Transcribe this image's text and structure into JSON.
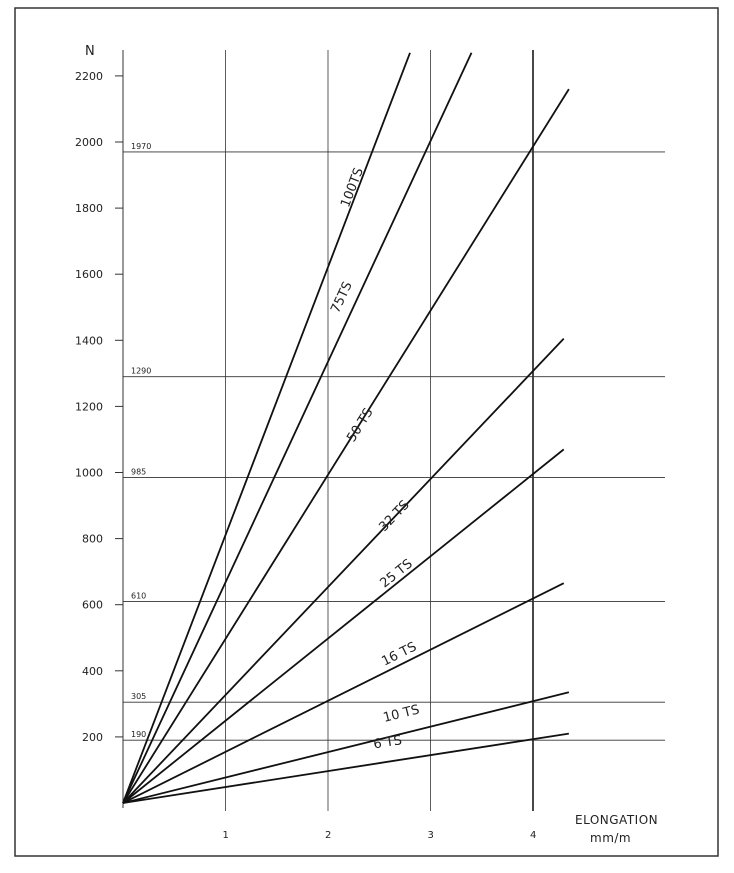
{
  "chart_data": {
    "type": "line",
    "y_unit": "N",
    "x_label_line1": "ELONGATION",
    "x_label_line2": "mm/m",
    "xlim": [
      0,
      4.4
    ],
    "ylim": [
      0,
      2200
    ],
    "x_ticks": [
      1,
      2,
      3,
      4
    ],
    "y_ticks": [
      200,
      400,
      600,
      800,
      1000,
      1200,
      1400,
      1600,
      1800,
      2000,
      2200
    ],
    "y_tick_labels": [
      "200",
      "400",
      "600",
      "800",
      "1000",
      "1200",
      "1400",
      "1600",
      "1800",
      "2000",
      "2200"
    ],
    "x_tick_labels": [
      "1",
      "2",
      "3",
      "4"
    ],
    "reference_lines": [
      {
        "y": 1970,
        "label": "1970"
      },
      {
        "y": 1290,
        "label": "1290"
      },
      {
        "y": 985,
        "label": "985"
      },
      {
        "y": 610,
        "label": "610"
      },
      {
        "y": 305,
        "label": "305"
      },
      {
        "y": 190,
        "label": "190"
      }
    ],
    "grid": true,
    "series": [
      {
        "name": "100 TS",
        "x": [
          0,
          2.8
        ],
        "y": [
          0,
          2270
        ],
        "label_x": 2.2,
        "label_y": 1800,
        "label_text": "100TS"
      },
      {
        "name": "75 TS",
        "x": [
          0,
          3.4
        ],
        "y": [
          0,
          2270
        ],
        "label_x": 2.1,
        "label_y": 1480,
        "label_text": "75TS"
      },
      {
        "name": "50 TS",
        "x": [
          0,
          4.35
        ],
        "y": [
          0,
          2160
        ],
        "label_x": 2.25,
        "label_y": 1090,
        "label_text": "50 TS"
      },
      {
        "name": "32 TS",
        "x": [
          0,
          4.3
        ],
        "y": [
          0,
          1405
        ],
        "label_x": 2.55,
        "label_y": 820,
        "label_text": "32 TS"
      },
      {
        "name": "25 TS",
        "x": [
          0,
          4.3
        ],
        "y": [
          0,
          1070
        ],
        "label_x": 2.55,
        "label_y": 650,
        "label_text": "25 TS"
      },
      {
        "name": "16 TS",
        "x": [
          0,
          4.3
        ],
        "y": [
          0,
          665
        ],
        "label_x": 2.55,
        "label_y": 415,
        "label_text": "16 TS"
      },
      {
        "name": "10 TS",
        "x": [
          0,
          4.35
        ],
        "y": [
          0,
          335
        ],
        "label_x": 2.55,
        "label_y": 245,
        "label_text": "10 TS"
      },
      {
        "name": "6 TS",
        "x": [
          0,
          4.35
        ],
        "y": [
          0,
          210
        ],
        "label_x": 2.45,
        "label_y": 165,
        "label_text": "6 TS"
      }
    ]
  }
}
